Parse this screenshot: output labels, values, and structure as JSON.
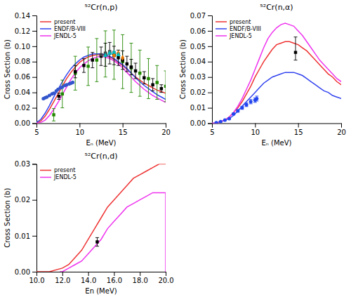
{
  "chart_data": [
    {
      "type": "line",
      "title": "⁵²Cr(n,p)",
      "xlabel": "Eₙ (MeV)",
      "ylabel": "Cross Section (b)",
      "xlim": [
        5.0,
        20.0
      ],
      "ylim": [
        0.0,
        0.14
      ],
      "xticks": [
        5,
        10,
        15,
        20
      ],
      "yticks": [
        {
          "value": 0,
          "label": "0.00"
        },
        0.02,
        0.04,
        0.06,
        0.08,
        {
          "value": 0.1,
          "label": "0.10"
        },
        0.12,
        0.14
      ],
      "legend": "upper left",
      "grid": false,
      "series": [
        {
          "name": "present",
          "type": "line",
          "color": "#ee3333",
          "x": [
            5.0,
            5.5,
            6.0,
            6.5,
            7.0,
            7.5,
            8.0,
            8.5,
            9.0,
            9.5,
            10.0,
            10.5,
            11.0,
            11.5,
            12.0,
            12.5,
            13.0,
            13.5,
            14.0,
            14.5,
            15.0,
            15.5,
            16.0,
            16.5,
            17.0,
            17.5,
            18.0,
            18.5,
            19.0,
            19.5,
            20.0
          ],
          "values": [
            0.0,
            0.003,
            0.009,
            0.018,
            0.028,
            0.038,
            0.048,
            0.058,
            0.066,
            0.073,
            0.079,
            0.083,
            0.086,
            0.088,
            0.089,
            0.089,
            0.088,
            0.086,
            0.083,
            0.079,
            0.075,
            0.07,
            0.065,
            0.06,
            0.056,
            0.052,
            0.049,
            0.046,
            0.043,
            0.041,
            0.039
          ]
        },
        {
          "name": "ENDF/B-VIII",
          "type": "line",
          "color": "#3344ee",
          "x": [
            5.0,
            5.5,
            6.0,
            6.5,
            7.0,
            7.5,
            8.0,
            8.5,
            9.0,
            9.5,
            10.0,
            10.5,
            11.0,
            11.5,
            12.0,
            12.5,
            13.0,
            13.5,
            14.0,
            14.5,
            15.0,
            15.5,
            16.0,
            16.5,
            17.0,
            17.5,
            18.0,
            18.5,
            19.0,
            19.5,
            20.0
          ],
          "values": [
            0.001,
            0.005,
            0.013,
            0.023,
            0.034,
            0.044,
            0.054,
            0.063,
            0.071,
            0.077,
            0.082,
            0.086,
            0.088,
            0.09,
            0.09,
            0.09,
            0.089,
            0.087,
            0.084,
            0.08,
            0.076,
            0.071,
            0.065,
            0.059,
            0.054,
            0.049,
            0.045,
            0.041,
            0.037,
            0.034,
            0.031
          ]
        },
        {
          "name": "JENDL-5",
          "type": "line",
          "color": "#ee33ee",
          "x": [
            5.0,
            5.5,
            6.0,
            6.5,
            7.0,
            7.5,
            8.0,
            8.5,
            9.0,
            9.5,
            10.0,
            10.5,
            11.0,
            11.5,
            12.0,
            12.5,
            13.0,
            13.5,
            14.0,
            14.5,
            15.0,
            15.5,
            16.0,
            16.5,
            17.0,
            17.5,
            18.0,
            18.5,
            19.0,
            19.5,
            20.0
          ],
          "values": [
            0.0,
            0.001,
            0.004,
            0.01,
            0.018,
            0.027,
            0.037,
            0.047,
            0.057,
            0.065,
            0.072,
            0.077,
            0.081,
            0.084,
            0.086,
            0.087,
            0.086,
            0.084,
            0.081,
            0.077,
            0.072,
            0.066,
            0.06,
            0.054,
            0.049,
            0.044,
            0.04,
            0.036,
            0.033,
            0.03,
            0.027
          ]
        },
        {
          "type": "scatter",
          "marker": "square",
          "color": "#228800",
          "x": [
            7.0,
            8.0,
            9.5,
            11.0,
            12.0,
            13.0,
            14.0,
            15.0,
            16.0,
            17.0,
            18.0,
            19.0,
            20.0
          ],
          "values": [
            0.011,
            0.038,
            0.065,
            0.074,
            0.082,
            0.09,
            0.089,
            0.08,
            0.072,
            0.065,
            0.058,
            0.053,
            0.048
          ],
          "yerr": [
            0.008,
            0.018,
            0.022,
            0.025,
            0.028,
            0.03,
            0.032,
            0.035,
            0.032,
            0.03,
            0.026,
            0.022,
            0.02
          ]
        },
        {
          "type": "scatter",
          "marker": "square",
          "color": "#000000",
          "x": [
            7.6,
            9.5,
            10.5,
            11.5,
            12.5,
            13.0,
            13.5,
            14.0,
            14.5,
            15.0,
            15.5,
            16.0,
            16.5,
            17.5,
            18.5,
            19.5
          ],
          "values": [
            0.035,
            0.067,
            0.075,
            0.082,
            0.087,
            0.089,
            0.091,
            0.088,
            0.085,
            0.082,
            0.077,
            0.073,
            0.068,
            0.059,
            0.05,
            0.045
          ],
          "yerr": [
            0.004,
            0.008,
            0.009,
            0.01,
            0.012,
            0.015,
            0.014,
            0.012,
            0.01,
            0.012,
            0.01,
            0.01,
            0.01,
            0.008,
            0.008,
            0.005
          ]
        },
        {
          "type": "scatter",
          "marker": "circle",
          "color": "#3355cc",
          "x": [
            5.8,
            6.0,
            6.2,
            6.5,
            6.8,
            7.0,
            7.3,
            7.5,
            7.8,
            8.0,
            8.3,
            8.5,
            8.8,
            9.0,
            9.2
          ],
          "values": [
            0.032,
            0.033,
            0.034,
            0.036,
            0.038,
            0.039,
            0.042,
            0.044,
            0.046,
            0.047,
            0.049,
            0.05,
            0.051,
            0.052,
            0.053
          ]
        },
        {
          "type": "scatter",
          "marker": "square",
          "color": "#444444",
          "x": [
            12.5,
            13.0,
            13.5,
            14.0,
            14.5
          ],
          "values": [
            0.089,
            0.091,
            0.093,
            0.092,
            0.09
          ]
        },
        {
          "type": "scatter",
          "marker": "diamond",
          "color": "#ee7700",
          "x": [
            14.0,
            14.5,
            15.0
          ],
          "values": [
            0.088,
            0.091,
            0.085
          ]
        },
        {
          "type": "scatter",
          "marker": "triangle",
          "color": "#00bbbb",
          "x": [
            13.0,
            13.5,
            14.0,
            14.5
          ],
          "values": [
            0.088,
            0.091,
            0.092,
            0.089
          ]
        }
      ]
    },
    {
      "type": "line",
      "title": "⁵²Cr(n,α)",
      "xlabel": "Eₙ (MeV)",
      "ylabel": "Cross Section (b)",
      "xlim": [
        5.0,
        20.0
      ],
      "ylim": [
        0.0,
        0.07
      ],
      "xticks": [
        5,
        10,
        15,
        20
      ],
      "yticks": [
        {
          "value": 0,
          "label": "0.00"
        },
        0.01,
        0.02,
        0.03,
        0.04,
        0.05,
        0.06,
        0.07
      ],
      "legend": "upper left",
      "grid": false,
      "series": [
        {
          "name": "present",
          "type": "line",
          "color": "#ee3333",
          "x": [
            5.0,
            5.5,
            6.0,
            6.5,
            7.0,
            7.5,
            8.0,
            8.5,
            9.0,
            9.5,
            10.0,
            10.5,
            11.0,
            11.5,
            12.0,
            12.5,
            13.0,
            13.5,
            14.0,
            14.5,
            15.0,
            15.5,
            16.0,
            16.5,
            17.0,
            17.5,
            18.0,
            18.5,
            19.0,
            19.5,
            20.0
          ],
          "values": [
            0.0,
            0.0,
            0.001,
            0.002,
            0.004,
            0.007,
            0.01,
            0.014,
            0.019,
            0.024,
            0.03,
            0.035,
            0.04,
            0.044,
            0.048,
            0.051,
            0.052,
            0.053,
            0.053,
            0.052,
            0.051,
            0.049,
            0.047,
            0.044,
            0.041,
            0.038,
            0.035,
            0.032,
            0.03,
            0.027,
            0.025
          ]
        },
        {
          "name": "ENDF/B-VIII",
          "type": "line",
          "color": "#3344ee",
          "x": [
            5.0,
            5.5,
            6.0,
            6.5,
            7.0,
            7.5,
            8.0,
            8.5,
            9.0,
            9.5,
            10.0,
            10.5,
            11.0,
            11.5,
            12.0,
            12.5,
            13.0,
            13.5,
            14.0,
            14.5,
            15.0,
            15.5,
            16.0,
            16.5,
            17.0,
            17.5,
            18.0,
            18.5,
            19.0,
            19.5,
            20.0
          ],
          "values": [
            0.0,
            0.0,
            0.001,
            0.002,
            0.003,
            0.005,
            0.008,
            0.011,
            0.014,
            0.017,
            0.02,
            0.023,
            0.026,
            0.028,
            0.03,
            0.031,
            0.032,
            0.033,
            0.033,
            0.033,
            0.032,
            0.031,
            0.029,
            0.027,
            0.025,
            0.023,
            0.021,
            0.02,
            0.018,
            0.017,
            0.016
          ]
        },
        {
          "name": "JENDL-5",
          "type": "line",
          "color": "#ee33ee",
          "x": [
            5.0,
            5.5,
            6.0,
            6.5,
            7.0,
            7.5,
            8.0,
            8.5,
            9.0,
            9.5,
            10.0,
            10.5,
            11.0,
            11.5,
            12.0,
            12.5,
            13.0,
            13.5,
            14.0,
            14.5,
            15.0,
            15.5,
            16.0,
            16.5,
            17.0,
            17.5,
            18.0,
            18.5,
            19.0,
            19.5,
            20.0
          ],
          "values": [
            0.0,
            0.0,
            0.001,
            0.002,
            0.004,
            0.007,
            0.011,
            0.016,
            0.022,
            0.028,
            0.035,
            0.042,
            0.049,
            0.055,
            0.059,
            0.062,
            0.064,
            0.065,
            0.064,
            0.063,
            0.06,
            0.057,
            0.053,
            0.049,
            0.045,
            0.041,
            0.038,
            0.035,
            0.032,
            0.029,
            0.027
          ]
        },
        {
          "type": "scatter",
          "marker": "square",
          "color": "#000000",
          "x": [
            14.7
          ],
          "values": [
            0.046
          ],
          "yerr_lo": [
            0.005
          ],
          "yerr_hi": [
            0.01
          ]
        },
        {
          "type": "scatter",
          "marker": "circle",
          "color": "#2244ee",
          "x": [
            5.5,
            6.0,
            6.5,
            7.0,
            7.5,
            8.0,
            8.5,
            9.0,
            9.5,
            10.0,
            10.2
          ],
          "values": [
            0.0003,
            0.001,
            0.002,
            0.003,
            0.006,
            0.008,
            0.01,
            0.012,
            0.014,
            0.015,
            0.016
          ],
          "yerr": [
            0.0001,
            0.0002,
            0.0003,
            0.0004,
            0.0006,
            0.0008,
            0.001,
            0.0012,
            0.0014,
            0.0015,
            0.0016
          ]
        }
      ]
    },
    {
      "type": "line",
      "title": "⁵²Cr(n,d)",
      "xlabel": "En (MeV)",
      "ylabel": "Cross Section (b)",
      "xlim": [
        10.0,
        20.0
      ],
      "ylim": [
        0.0,
        0.03
      ],
      "xticks": [
        {
          "value": 10,
          "label": "10.0"
        },
        {
          "value": 12,
          "label": "12.0"
        },
        {
          "value": 14,
          "label": "14.0"
        },
        {
          "value": 16,
          "label": "16.0"
        },
        {
          "value": 18,
          "label": "18.0"
        },
        {
          "value": 20,
          "label": "20.0"
        }
      ],
      "yticks": [
        {
          "value": 0,
          "label": "0.00"
        },
        0.01,
        0.02,
        0.03
      ],
      "legend": "upper left",
      "grid": false,
      "series": [
        {
          "name": "present",
          "type": "line",
          "color": "#ee3333",
          "x": [
            10.0,
            11.0,
            12.0,
            12.5,
            13.0,
            13.5,
            14.0,
            14.5,
            15.0,
            15.5,
            16.0,
            16.5,
            17.0,
            17.5,
            18.0,
            18.5,
            19.0,
            19.5,
            20.0
          ],
          "values": [
            0.0,
            0.0,
            0.001,
            0.002,
            0.004,
            0.006,
            0.009,
            0.012,
            0.015,
            0.018,
            0.02,
            0.022,
            0.024,
            0.026,
            0.027,
            0.028,
            0.029,
            0.03,
            0.03
          ]
        },
        {
          "name": "JENDL-5",
          "type": "line",
          "color": "#ee33ee",
          "x": [
            11.8,
            12.0,
            12.5,
            13.0,
            13.5,
            14.0,
            14.5,
            15.0,
            15.5,
            16.0,
            16.5,
            17.0,
            17.5,
            18.0,
            18.5,
            19.0,
            19.5,
            20.0,
            20.0
          ],
          "values": [
            0.0,
            0.0,
            0.001,
            0.002,
            0.003,
            0.005,
            0.007,
            0.009,
            0.012,
            0.014,
            0.016,
            0.018,
            0.019,
            0.02,
            0.021,
            0.022,
            0.022,
            0.022,
            0.0
          ]
        },
        {
          "type": "scatter",
          "marker": "square",
          "color": "#000000",
          "x": [
            14.7
          ],
          "values": [
            0.0083
          ],
          "yerr": [
            0.0012
          ]
        }
      ]
    }
  ]
}
